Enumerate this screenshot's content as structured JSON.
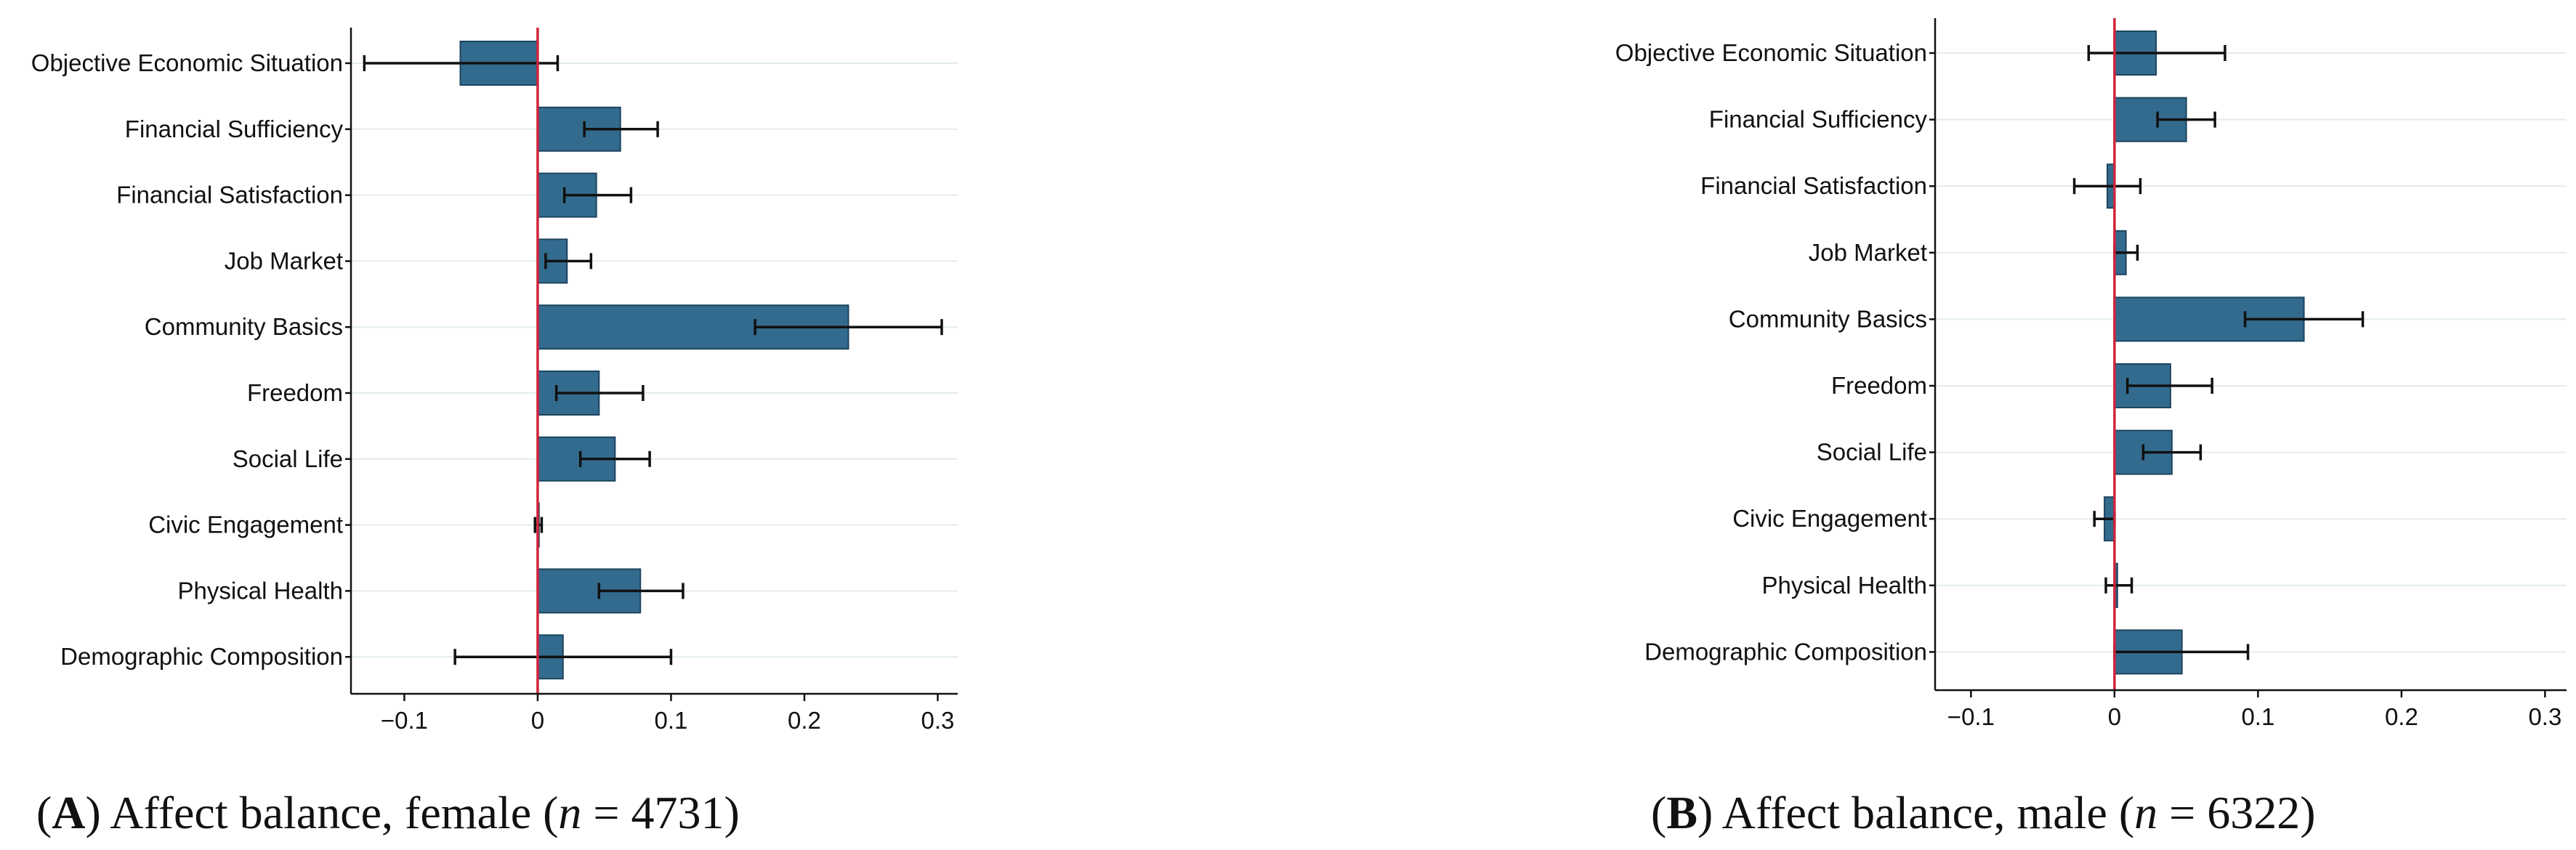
{
  "chart_data": [
    {
      "type": "bar",
      "orientation": "horizontal",
      "caption": {
        "letter": "A",
        "text_before": ") Affect balance, female (",
        "n_symbol": "n",
        "n_text": " = 4731)"
      },
      "categories": [
        "Objective Economic Situation",
        "Financial Sufficiency",
        "Financial Satisfaction",
        "Job Market",
        "Community Basics",
        "Freedom",
        "Social Life",
        "Civic Engagement",
        "Physical Health",
        "Demographic Composition"
      ],
      "values": [
        -0.058,
        0.062,
        0.044,
        0.022,
        0.233,
        0.046,
        0.058,
        0.001,
        0.077,
        0.019
      ],
      "ci_low": [
        -0.13,
        0.035,
        0.02,
        0.006,
        0.163,
        0.014,
        0.032,
        -0.002,
        0.046,
        -0.062
      ],
      "ci_high": [
        0.015,
        0.09,
        0.07,
        0.04,
        0.303,
        0.079,
        0.084,
        0.003,
        0.109,
        0.1
      ],
      "xlim": [
        -0.14,
        0.315
      ],
      "xticks": [
        "−0.1",
        "0",
        "0.1",
        "0.2",
        "0.3"
      ],
      "xtick_values": [
        -0.1,
        0,
        0.1,
        0.2,
        0.3
      ],
      "grid": true,
      "bar_color": "#336b8e",
      "zero_line_color": "#d0243a"
    },
    {
      "type": "bar",
      "orientation": "horizontal",
      "caption": {
        "letter": "B",
        "text_before": ") Affect balance, male (",
        "n_symbol": "n",
        "n_text": " = 6322)"
      },
      "categories": [
        "Objective Economic Situation",
        "Financial Sufficiency",
        "Financial Satisfaction",
        "Job Market",
        "Community Basics",
        "Freedom",
        "Social Life",
        "Civic Engagement",
        "Physical Health",
        "Demographic Composition"
      ],
      "values": [
        0.029,
        0.05,
        -0.005,
        0.008,
        0.132,
        0.039,
        0.04,
        -0.007,
        0.002,
        0.047
      ],
      "ci_low": [
        -0.018,
        0.03,
        -0.028,
        0.0,
        0.091,
        0.009,
        0.02,
        -0.014,
        -0.006,
        0.0
      ],
      "ci_high": [
        0.077,
        0.07,
        0.018,
        0.016,
        0.173,
        0.068,
        0.06,
        0.0,
        0.012,
        0.093
      ],
      "xlim": [
        -0.125,
        0.315
      ],
      "xticks": [
        "−0.1",
        "0",
        "0.1",
        "0.2",
        "0.3"
      ],
      "xtick_values": [
        -0.1,
        0,
        0.1,
        0.2,
        0.3
      ],
      "grid": true,
      "bar_color": "#336b8e",
      "zero_line_color": "#d0243a"
    }
  ]
}
